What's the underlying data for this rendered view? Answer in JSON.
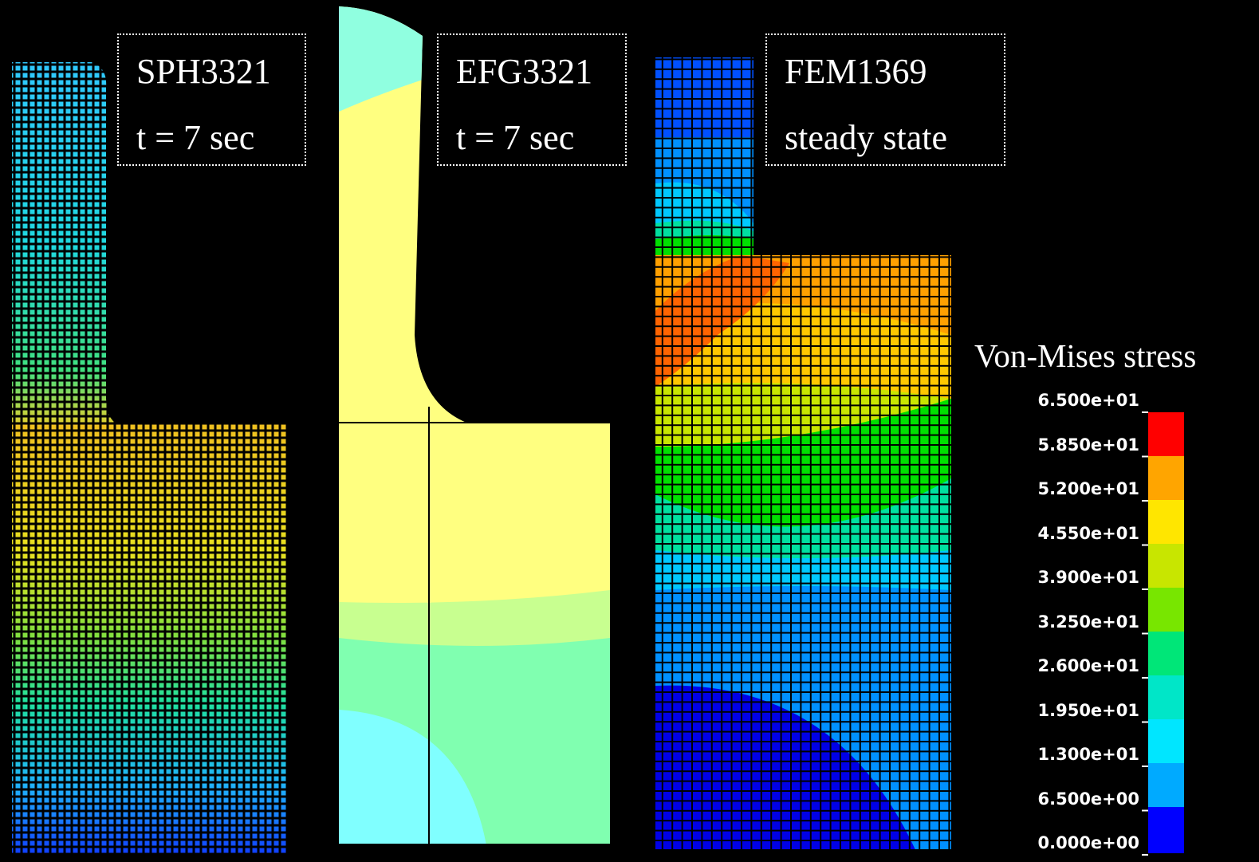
{
  "panels": [
    {
      "label": "SPH3321",
      "time": "t = 7 sec"
    },
    {
      "label": "EFG3321",
      "time": "t = 7 sec"
    },
    {
      "label": "FEM1369",
      "time": "steady state"
    }
  ],
  "legend": {
    "title": "Von-Mises stress",
    "ticks": [
      "6.500e+01",
      "5.850e+01",
      "5.200e+01",
      "4.550e+01",
      "3.900e+01",
      "3.250e+01",
      "2.600e+01",
      "1.950e+01",
      "1.300e+01",
      "6.500e+00",
      "0.000e+00"
    ]
  }
}
